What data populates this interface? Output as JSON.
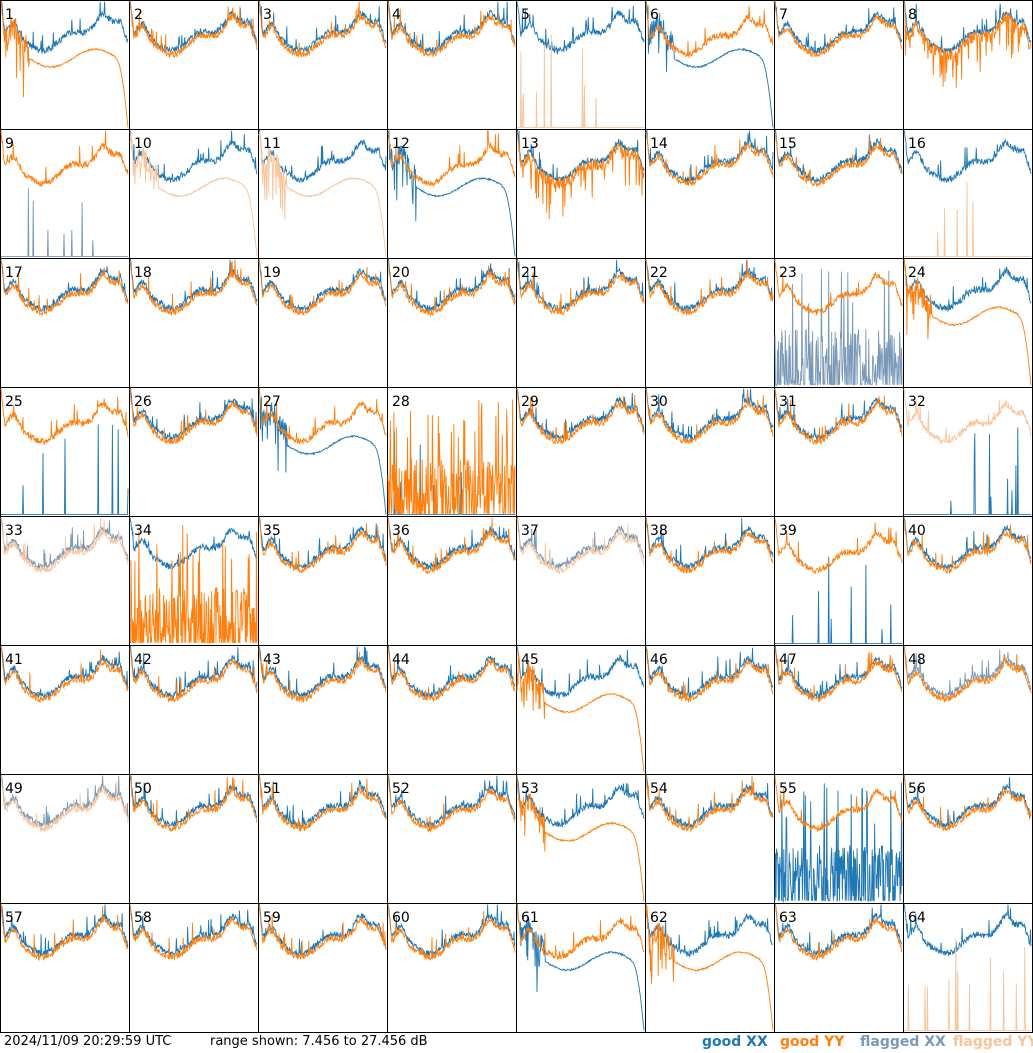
{
  "footer": {
    "timestamp": "2024/11/09 20:29:59 UTC",
    "range_text": "range shown: 7.456 to 27.456 dB"
  },
  "legend": {
    "good_xx": "good XX",
    "good_yy": "good YY",
    "flagged_xx": "flagged XX",
    "flagged_yy": "flagged YY"
  },
  "colors": {
    "good_xx": "#1f77b4",
    "good_yy": "#ff7f0e",
    "flagged_xx": "#7a99b8",
    "flagged_yy": "#f9c49a"
  },
  "chart_data": {
    "type": "line",
    "layout": "8x8 grid of spectra panels",
    "ylim": [
      7.456,
      27.456
    ],
    "yunit": "dB",
    "panels": [
      {
        "id": "1",
        "xx": "good",
        "yy": "good",
        "xx_shape": "normal",
        "yy_shape": "dropout"
      },
      {
        "id": "2",
        "xx": "good",
        "yy": "good",
        "xx_shape": "normal",
        "yy_shape": "normal"
      },
      {
        "id": "3",
        "xx": "good",
        "yy": "good",
        "xx_shape": "normal",
        "yy_shape": "normal"
      },
      {
        "id": "4",
        "xx": "good",
        "yy": "good",
        "xx_shape": "normal",
        "yy_shape": "normal"
      },
      {
        "id": "5",
        "xx": "good",
        "yy": "flagged",
        "xx_shape": "normal",
        "yy_shape": "spikes"
      },
      {
        "id": "6",
        "xx": "good",
        "yy": "good",
        "xx_shape": "dropout",
        "yy_shape": "normal"
      },
      {
        "id": "7",
        "xx": "good",
        "yy": "good",
        "xx_shape": "normal",
        "yy_shape": "normal"
      },
      {
        "id": "8",
        "xx": "good",
        "yy": "good",
        "xx_shape": "normal",
        "yy_shape": "noisy"
      },
      {
        "id": "9",
        "xx": "flagged",
        "yy": "good",
        "xx_shape": "spikes",
        "yy_shape": "normal"
      },
      {
        "id": "10",
        "xx": "good",
        "yy": "flagged",
        "xx_shape": "normal",
        "yy_shape": "dropout"
      },
      {
        "id": "11",
        "xx": "good",
        "yy": "flagged",
        "xx_shape": "normal",
        "yy_shape": "dropout"
      },
      {
        "id": "12",
        "xx": "good",
        "yy": "good",
        "xx_shape": "dropout",
        "yy_shape": "normal"
      },
      {
        "id": "13",
        "xx": "good",
        "yy": "good",
        "xx_shape": "normal",
        "yy_shape": "noisy"
      },
      {
        "id": "14",
        "xx": "good",
        "yy": "good",
        "xx_shape": "normal",
        "yy_shape": "normal"
      },
      {
        "id": "15",
        "xx": "good",
        "yy": "good",
        "xx_shape": "normal",
        "yy_shape": "normal"
      },
      {
        "id": "16",
        "xx": "good",
        "yy": "flagged",
        "xx_shape": "normal",
        "yy_shape": "spikes"
      },
      {
        "id": "17",
        "xx": "good",
        "yy": "good",
        "xx_shape": "normal",
        "yy_shape": "normal"
      },
      {
        "id": "18",
        "xx": "good",
        "yy": "good",
        "xx_shape": "normal",
        "yy_shape": "normal"
      },
      {
        "id": "19",
        "xx": "good",
        "yy": "good",
        "xx_shape": "normal",
        "yy_shape": "normal"
      },
      {
        "id": "20",
        "xx": "good",
        "yy": "good",
        "xx_shape": "normal",
        "yy_shape": "normal"
      },
      {
        "id": "21",
        "xx": "good",
        "yy": "good",
        "xx_shape": "normal",
        "yy_shape": "normal"
      },
      {
        "id": "22",
        "xx": "good",
        "yy": "good",
        "xx_shape": "normal",
        "yy_shape": "normal"
      },
      {
        "id": "23",
        "xx": "flagged",
        "yy": "good",
        "xx_shape": "bad",
        "yy_shape": "normal"
      },
      {
        "id": "24",
        "xx": "good",
        "yy": "good",
        "xx_shape": "normal",
        "yy_shape": "dropout"
      },
      {
        "id": "25",
        "xx": "good",
        "yy": "good",
        "xx_shape": "spikes",
        "yy_shape": "normal"
      },
      {
        "id": "26",
        "xx": "good",
        "yy": "good",
        "xx_shape": "normal",
        "yy_shape": "normal"
      },
      {
        "id": "27",
        "xx": "good",
        "yy": "good",
        "xx_shape": "dropout",
        "yy_shape": "normal"
      },
      {
        "id": "28",
        "xx": "good",
        "yy": "good",
        "xx_shape": "spikes",
        "yy_shape": "bad"
      },
      {
        "id": "29",
        "xx": "good",
        "yy": "good",
        "xx_shape": "normal",
        "yy_shape": "normal"
      },
      {
        "id": "30",
        "xx": "good",
        "yy": "good",
        "xx_shape": "normal",
        "yy_shape": "normal"
      },
      {
        "id": "31",
        "xx": "good",
        "yy": "good",
        "xx_shape": "normal",
        "yy_shape": "normal"
      },
      {
        "id": "32",
        "xx": "good",
        "yy": "flagged",
        "xx_shape": "spikes",
        "yy_shape": "normal"
      },
      {
        "id": "33",
        "xx": "flagged",
        "yy": "flagged",
        "xx_shape": "normal",
        "yy_shape": "normal"
      },
      {
        "id": "34",
        "xx": "good",
        "yy": "good",
        "xx_shape": "normal",
        "yy_shape": "bad"
      },
      {
        "id": "35",
        "xx": "good",
        "yy": "good",
        "xx_shape": "normal",
        "yy_shape": "normal"
      },
      {
        "id": "36",
        "xx": "good",
        "yy": "good",
        "xx_shape": "normal",
        "yy_shape": "normal"
      },
      {
        "id": "37",
        "xx": "flagged",
        "yy": "flagged",
        "xx_shape": "normal",
        "yy_shape": "normal"
      },
      {
        "id": "38",
        "xx": "good",
        "yy": "good",
        "xx_shape": "normal",
        "yy_shape": "normal"
      },
      {
        "id": "39",
        "xx": "good",
        "yy": "good",
        "xx_shape": "spikes",
        "yy_shape": "normal"
      },
      {
        "id": "40",
        "xx": "good",
        "yy": "good",
        "xx_shape": "normal",
        "yy_shape": "normal"
      },
      {
        "id": "41",
        "xx": "good",
        "yy": "good",
        "xx_shape": "normal",
        "yy_shape": "normal"
      },
      {
        "id": "42",
        "xx": "good",
        "yy": "good",
        "xx_shape": "normal",
        "yy_shape": "normal"
      },
      {
        "id": "43",
        "xx": "good",
        "yy": "good",
        "xx_shape": "normal",
        "yy_shape": "normal"
      },
      {
        "id": "44",
        "xx": "good",
        "yy": "good",
        "xx_shape": "normal",
        "yy_shape": "normal"
      },
      {
        "id": "45",
        "xx": "good",
        "yy": "good",
        "xx_shape": "normal",
        "yy_shape": "dropout"
      },
      {
        "id": "46",
        "xx": "good",
        "yy": "good",
        "xx_shape": "normal",
        "yy_shape": "normal"
      },
      {
        "id": "47",
        "xx": "good",
        "yy": "good",
        "xx_shape": "normal",
        "yy_shape": "normal"
      },
      {
        "id": "48",
        "xx": "flagged",
        "yy": "good",
        "xx_shape": "normal",
        "yy_shape": "normal"
      },
      {
        "id": "49",
        "xx": "flagged",
        "yy": "flagged",
        "xx_shape": "normal",
        "yy_shape": "normal"
      },
      {
        "id": "50",
        "xx": "good",
        "yy": "good",
        "xx_shape": "normal",
        "yy_shape": "normal"
      },
      {
        "id": "51",
        "xx": "good",
        "yy": "good",
        "xx_shape": "normal",
        "yy_shape": "normal"
      },
      {
        "id": "52",
        "xx": "good",
        "yy": "good",
        "xx_shape": "normal",
        "yy_shape": "normal"
      },
      {
        "id": "53",
        "xx": "good",
        "yy": "good",
        "xx_shape": "normal",
        "yy_shape": "dropout"
      },
      {
        "id": "54",
        "xx": "good",
        "yy": "good",
        "xx_shape": "normal",
        "yy_shape": "normal"
      },
      {
        "id": "55",
        "xx": "good",
        "yy": "good",
        "xx_shape": "bad",
        "yy_shape": "normal"
      },
      {
        "id": "56",
        "xx": "good",
        "yy": "good",
        "xx_shape": "normal",
        "yy_shape": "normal"
      },
      {
        "id": "57",
        "xx": "good",
        "yy": "good",
        "xx_shape": "normal",
        "yy_shape": "normal"
      },
      {
        "id": "58",
        "xx": "good",
        "yy": "good",
        "xx_shape": "normal",
        "yy_shape": "normal"
      },
      {
        "id": "59",
        "xx": "good",
        "yy": "good",
        "xx_shape": "normal",
        "yy_shape": "normal"
      },
      {
        "id": "60",
        "xx": "good",
        "yy": "good",
        "xx_shape": "normal",
        "yy_shape": "normal"
      },
      {
        "id": "61",
        "xx": "good",
        "yy": "good",
        "xx_shape": "dropout",
        "yy_shape": "normal"
      },
      {
        "id": "62",
        "xx": "good",
        "yy": "good",
        "xx_shape": "normal",
        "yy_shape": "dropout"
      },
      {
        "id": "63",
        "xx": "good",
        "yy": "good",
        "xx_shape": "normal",
        "yy_shape": "normal"
      },
      {
        "id": "64",
        "xx": "good",
        "yy": "flagged",
        "xx_shape": "normal",
        "yy_shape": "spikes"
      }
    ]
  }
}
